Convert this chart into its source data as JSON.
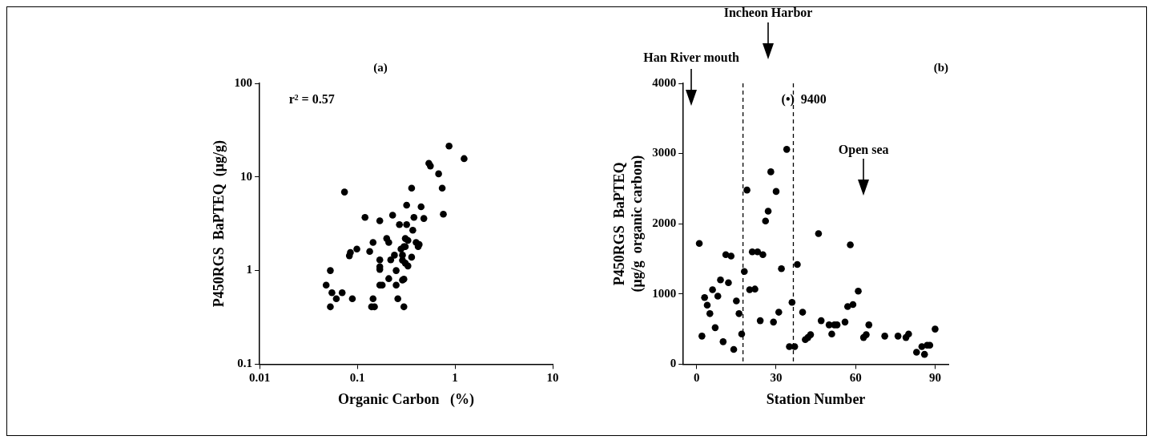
{
  "chart_data": [
    {
      "type": "scatter",
      "title": "(a)",
      "xlabel": "Organic Carbon   (%)",
      "ylabel": "P450RGS  BaPTEQ  (μg/g)",
      "log": "xy",
      "xlim": [
        0.01,
        10
      ],
      "ylim": [
        0.1,
        100
      ],
      "xticks": [
        0.01,
        0.1,
        1,
        10
      ],
      "yticks": [
        0.1,
        1,
        10,
        100
      ],
      "grid": false,
      "marker": "circle",
      "annotations": [
        "r² = 0.57"
      ],
      "series": [
        {
          "color": "#000000",
          "x": [
            0.87,
            1.24,
            0.54,
            0.56,
            0.68,
            0.074,
            0.36,
            0.74,
            0.32,
            0.45,
            0.76,
            0.12,
            0.17,
            0.23,
            0.38,
            0.48,
            0.27,
            0.32,
            0.37,
            0.2,
            0.21,
            0.145,
            0.31,
            0.33,
            0.4,
            0.43,
            0.42,
            0.099,
            0.134,
            0.28,
            0.3,
            0.31,
            0.085,
            0.083,
            0.24,
            0.22,
            0.17,
            0.29,
            0.36,
            0.29,
            0.31,
            0.33,
            0.053,
            0.17,
            0.17,
            0.25,
            0.21,
            0.3,
            0.29,
            0.17,
            0.18,
            0.25,
            0.048,
            0.055,
            0.061,
            0.07,
            0.089,
            0.145,
            0.26,
            0.053,
            0.14,
            0.15,
            0.3
          ],
          "values": [
            21.4,
            15.7,
            14.0,
            13.1,
            10.8,
            6.9,
            7.6,
            7.6,
            5.0,
            4.8,
            4.0,
            3.7,
            3.4,
            3.9,
            3.7,
            3.6,
            3.1,
            3.1,
            2.7,
            2.2,
            2.0,
            2.0,
            2.2,
            2.1,
            2.0,
            1.9,
            1.8,
            1.7,
            1.6,
            1.7,
            1.8,
            1.8,
            1.56,
            1.44,
            1.46,
            1.3,
            1.3,
            1.46,
            1.39,
            1.29,
            1.2,
            1.12,
            1.0,
            1.1,
            1.03,
            1.0,
            0.82,
            0.81,
            0.79,
            0.7,
            0.7,
            0.7,
            0.7,
            0.58,
            0.5,
            0.58,
            0.5,
            0.5,
            0.5,
            0.41,
            0.41,
            0.41,
            0.41
          ]
        }
      ]
    },
    {
      "type": "scatter",
      "title": "(b)",
      "xlabel": "Station Number",
      "ylabel": "P450RGS  BaPTEQ\n(μg/g  organic carbon)",
      "xlim": [
        -5,
        95
      ],
      "ylim": [
        0,
        4000
      ],
      "xticks": [
        0,
        30,
        60,
        90
      ],
      "yticks": [
        0,
        1000,
        2000,
        3000,
        4000
      ],
      "grid": false,
      "marker": "circle",
      "ref_lines": [
        {
          "axis": "x",
          "value": 17.5,
          "line_style": "dashed",
          "color": "#000000"
        },
        {
          "axis": "x",
          "value": 36.5,
          "line_style": "dashed",
          "color": "#000000"
        }
      ],
      "annotations": [
        "(•)  9400",
        "Han River mouth",
        "Incheon Harbor",
        "Open sea"
      ],
      "series": [
        {
          "color": "#000000",
          "x": [
            1,
            2,
            3,
            4,
            5,
            6,
            7,
            8,
            9,
            10,
            11,
            12,
            13,
            14,
            15,
            16,
            17,
            18,
            19,
            20,
            21,
            22,
            23,
            24,
            25,
            26,
            27,
            28,
            29,
            30,
            31,
            32,
            34,
            35,
            36,
            37,
            38,
            40,
            41,
            42,
            43,
            46,
            47,
            50,
            51,
            52,
            53,
            56,
            57,
            58,
            59,
            61,
            63,
            64,
            65,
            71,
            76,
            79,
            80,
            83,
            85,
            86,
            87,
            88,
            90
          ],
          "values": [
            1720,
            400,
            950,
            840,
            720,
            1060,
            520,
            970,
            1200,
            320,
            1560,
            1160,
            1540,
            210,
            900,
            720,
            430,
            1320,
            2480,
            1060,
            1600,
            1070,
            1600,
            620,
            1560,
            2040,
            2180,
            2740,
            600,
            2460,
            740,
            1360,
            3060,
            250,
            880,
            250,
            1420,
            740,
            350,
            380,
            420,
            1860,
            620,
            560,
            430,
            560,
            560,
            600,
            820,
            1700,
            850,
            1040,
            380,
            420,
            560,
            400,
            400,
            380,
            430,
            170,
            250,
            140,
            270,
            270,
            500
          ]
        }
      ]
    }
  ]
}
